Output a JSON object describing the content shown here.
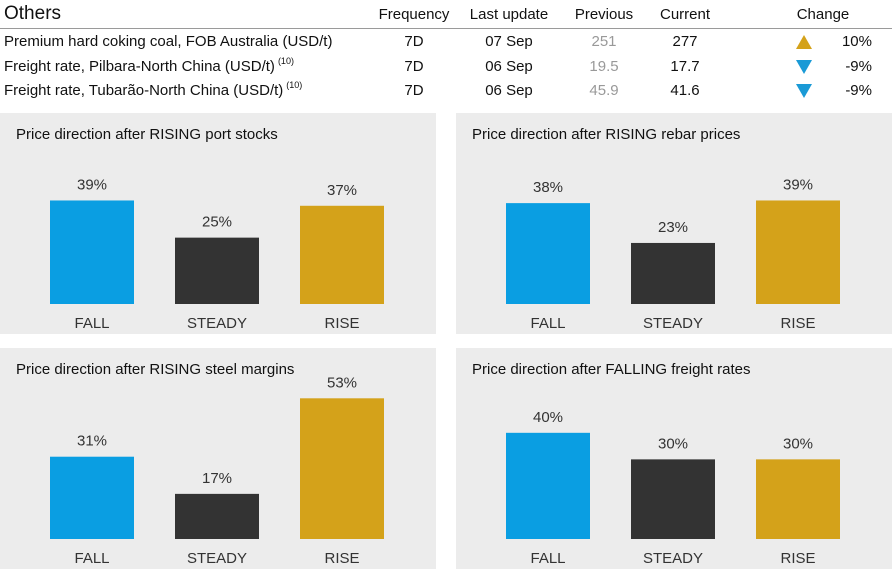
{
  "table": {
    "title": "Others",
    "headers": {
      "frequency": "Frequency",
      "last_update": "Last update",
      "previous": "Previous",
      "current": "Current",
      "change": "Change"
    },
    "rows": [
      {
        "name": "Premium hard coking coal, FOB Australia (USD/t)",
        "note": "",
        "frequency": "7D",
        "last_update": "07 Sep",
        "previous": "251",
        "current": "277",
        "direction": "up",
        "change": "10%"
      },
      {
        "name": "Freight rate, Pilbara-North China (USD/t)",
        "note": "(10)",
        "frequency": "7D",
        "last_update": "06 Sep",
        "previous": "19.5",
        "current": "17.7",
        "direction": "down",
        "change": "-9%"
      },
      {
        "name": "Freight rate, Tubarão-North China (USD/t)",
        "note": "(10)",
        "frequency": "7D",
        "last_update": "06 Sep",
        "previous": "45.9",
        "current": "41.6",
        "direction": "down",
        "change": "-9%"
      }
    ]
  },
  "colors": {
    "fall": "#0a9ee2",
    "steady": "#333333",
    "rise": "#d4a21a",
    "panel_bg": "#ececec",
    "arrow_up": "#d4a21a",
    "arrow_down": "#1a9ad6"
  },
  "chart_data": [
    {
      "type": "bar",
      "title": "Price direction after RISING port stocks",
      "categories": [
        "FALL",
        "STEADY",
        "RISE"
      ],
      "values": [
        39,
        25,
        37
      ],
      "labels": [
        "39%",
        "25%",
        "37%"
      ],
      "ylim": [
        0,
        55
      ],
      "xlabel": "",
      "ylabel": ""
    },
    {
      "type": "bar",
      "title": "Price direction after RISING rebar prices",
      "categories": [
        "FALL",
        "STEADY",
        "RISE"
      ],
      "values": [
        38,
        23,
        39
      ],
      "labels": [
        "38%",
        "23%",
        "39%"
      ],
      "ylim": [
        0,
        55
      ],
      "xlabel": "",
      "ylabel": ""
    },
    {
      "type": "bar",
      "title": "Price direction after RISING steel margins",
      "categories": [
        "FALL",
        "STEADY",
        "RISE"
      ],
      "values": [
        31,
        17,
        53
      ],
      "labels": [
        "31%",
        "17%",
        "53%"
      ],
      "ylim": [
        0,
        55
      ],
      "xlabel": "",
      "ylabel": ""
    },
    {
      "type": "bar",
      "title": "Price direction after FALLING freight rates",
      "categories": [
        "FALL",
        "STEADY",
        "RISE"
      ],
      "values": [
        40,
        30,
        30
      ],
      "labels": [
        "40%",
        "30%",
        "30%"
      ],
      "ylim": [
        0,
        55
      ],
      "xlabel": "",
      "ylabel": ""
    }
  ]
}
